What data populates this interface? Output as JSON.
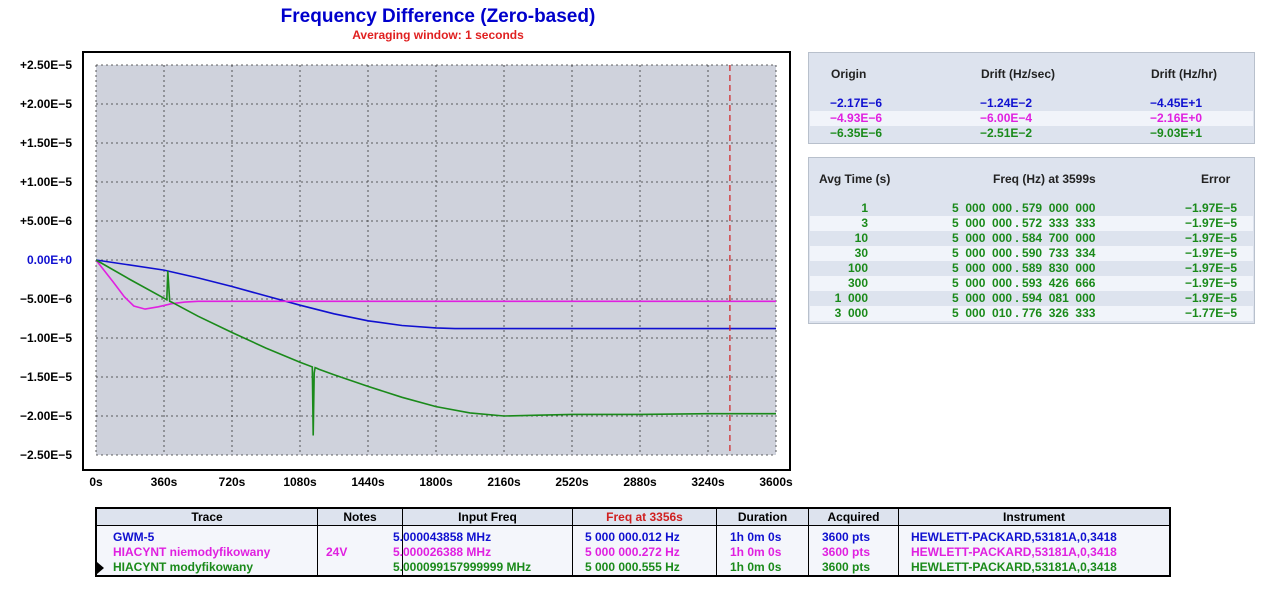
{
  "header": {
    "title": "Frequency Difference (Zero-based)",
    "subtitle": "Averaging window: 1 seconds"
  },
  "colors": {
    "blue": "#1010d0",
    "magenta": "#e020e0",
    "green": "#1a8a1a",
    "marker": "#d02020",
    "plot_bg": "#cfd2dc",
    "grid": "#333333"
  },
  "chart_data": {
    "type": "line",
    "title": "Frequency Difference (Zero-based)",
    "subtitle": "Averaging window: 1 seconds",
    "xlabel": "",
    "ylabel": "",
    "xlim": [
      0,
      3600
    ],
    "ylim": [
      -2.5e-05,
      2.5e-05
    ],
    "grid": true,
    "x_tick_labels": [
      "0s",
      "360s",
      "720s",
      "1080s",
      "1440s",
      "1800s",
      "2160s",
      "2520s",
      "2880s",
      "3240s",
      "3600s"
    ],
    "x_tick_values": [
      0,
      360,
      720,
      1080,
      1440,
      1800,
      2160,
      2520,
      2880,
      3240,
      3600
    ],
    "y_tick_labels": [
      "+2.50E−5",
      "+2.00E−5",
      "+1.50E−5",
      "+1.00E−5",
      "+5.00E−6",
      "0.00E+0",
      "−5.00E−6",
      "−1.00E−5",
      "−1.50E−5",
      "−2.00E−5",
      "−2.50E−5"
    ],
    "y_tick_values": [
      2.5e-05,
      2e-05,
      1.5e-05,
      1e-05,
      5e-06,
      0,
      -5e-06,
      -1e-05,
      -1.5e-05,
      -2e-05,
      -2.5e-05
    ],
    "marker_x": 3356,
    "series": [
      {
        "name": "GWM-5",
        "color": "#1010d0",
        "x": [
          0,
          360,
          540,
          720,
          900,
          1080,
          1260,
          1440,
          1620,
          1800,
          1900,
          2160,
          2520,
          2880,
          3240,
          3600
        ],
        "y": [
          0,
          -1.3e-06,
          -2.3e-06,
          -3.4e-06,
          -4.6e-06,
          -5.8e-06,
          -6.9e-06,
          -7.8e-06,
          -8.4e-06,
          -8.7e-06,
          -8.8e-06,
          -8.8e-06,
          -8.8e-06,
          -8.8e-06,
          -8.8e-06,
          -8.8e-06
        ]
      },
      {
        "name": "HIACYNT niemodyfikowany",
        "color": "#e020e0",
        "x": [
          0,
          90,
          150,
          200,
          260,
          330,
          400,
          470,
          540,
          720,
          1080,
          1440,
          1800,
          2160,
          2520,
          2880,
          3240,
          3600
        ],
        "y": [
          0,
          -2.8e-06,
          -4.7e-06,
          -5.9e-06,
          -6.3e-06,
          -6e-06,
          -5.6e-06,
          -5.4e-06,
          -5.3e-06,
          -5.3e-06,
          -5.3e-06,
          -5.3e-06,
          -5.3e-06,
          -5.3e-06,
          -5.3e-06,
          -5.3e-06,
          -5.3e-06,
          -5.3e-06
        ]
      },
      {
        "name": "HIACYNT modyfikowany",
        "color": "#1a8a1a",
        "x": [
          0,
          180,
          360,
          375,
          380,
          390,
          400,
          540,
          720,
          900,
          1080,
          1145,
          1150,
          1155,
          1160,
          1170,
          1180,
          1260,
          1440,
          1620,
          1800,
          1980,
          2160,
          2340,
          2520,
          2880,
          3240,
          3600
        ],
        "y": [
          0,
          -2.5e-06,
          -4.9e-06,
          -5.1e-06,
          -1.4e-06,
          -5.3e-06,
          -5.4e-06,
          -7.2e-06,
          -9.3e-06,
          -1.13e-05,
          -1.31e-05,
          -1.37e-05,
          -2.25e-05,
          -1.45e-05,
          -1.38e-05,
          -1.39e-05,
          -1.4e-05,
          -1.47e-05,
          -1.62e-05,
          -1.76e-05,
          -1.88e-05,
          -1.96e-05,
          -2e-05,
          -1.99e-05,
          -1.98e-05,
          -1.98e-05,
          -1.97e-05,
          -1.97e-05
        ]
      }
    ]
  },
  "drift_panel": {
    "headers": [
      "Origin",
      "Drift (Hz/sec)",
      "Drift (Hz/hr)"
    ],
    "rows": [
      {
        "origin": "−2.17E−6",
        "drift_sec": "−1.24E−2",
        "drift_hr": "−4.45E+1",
        "color": "#1010d0"
      },
      {
        "origin": "−4.93E−6",
        "drift_sec": "−6.00E−4",
        "drift_hr": "−2.16E+0",
        "color": "#e020e0"
      },
      {
        "origin": "−6.35E−6",
        "drift_sec": "−2.51E−2",
        "drift_hr": "−9.03E+1",
        "color": "#1a8a1a"
      }
    ]
  },
  "avg_panel": {
    "headers": [
      "Avg Time (s)",
      "Freq (Hz) at 3599s",
      "Error"
    ],
    "color": "#1a8a1a",
    "rows": [
      {
        "avg": "1",
        "freq": "5  000  000 . 579  000  000",
        "err": "−1.97E−5"
      },
      {
        "avg": "3",
        "freq": "5  000  000 . 572  333  333",
        "err": "−1.97E−5"
      },
      {
        "avg": "10",
        "freq": "5  000  000 . 584  700  000",
        "err": "−1.97E−5"
      },
      {
        "avg": "30",
        "freq": "5  000  000 . 590  733  334",
        "err": "−1.97E−5"
      },
      {
        "avg": "100",
        "freq": "5  000  000 . 589  830  000",
        "err": "−1.97E−5"
      },
      {
        "avg": "300",
        "freq": "5  000  000 . 593  426  666",
        "err": "−1.97E−5"
      },
      {
        "avg": "1  000",
        "freq": "5  000  000 . 594  081  000",
        "err": "−1.97E−5"
      },
      {
        "avg": "3  000",
        "freq": "5  000  010 . 776  326  333",
        "err": "−1.77E−5"
      }
    ]
  },
  "trace_table": {
    "headers": [
      "Trace",
      "Notes",
      "Input Freq",
      "Freq at 3356s",
      "Duration",
      "Acquired",
      "Instrument"
    ],
    "rows": [
      {
        "trace": "GWM-5",
        "notes": "",
        "input_freq": "5.000043858 MHz",
        "freq_at": "5 000 000.012 Hz",
        "duration": "1h 0m 0s",
        "acquired": "3600 pts",
        "instrument": "HEWLETT-PACKARD,53181A,0,3418",
        "color": "#1010d0"
      },
      {
        "trace": "HIACYNT niemodyfikowany",
        "notes": "24V",
        "input_freq": "5.000026388 MHz",
        "freq_at": "5 000 000.272 Hz",
        "duration": "1h 0m 0s",
        "acquired": "3600 pts",
        "instrument": "HEWLETT-PACKARD,53181A,0,3418",
        "color": "#e020e0"
      },
      {
        "trace": "HIACYNT modyfikowany",
        "notes": "",
        "input_freq": "5.000099157999999 MHz",
        "freq_at": "5 000 000.555 Hz",
        "duration": "1h 0m 0s",
        "acquired": "3600 pts",
        "instrument": "HEWLETT-PACKARD,53181A,0,3418",
        "color": "#1a8a1a"
      }
    ]
  }
}
